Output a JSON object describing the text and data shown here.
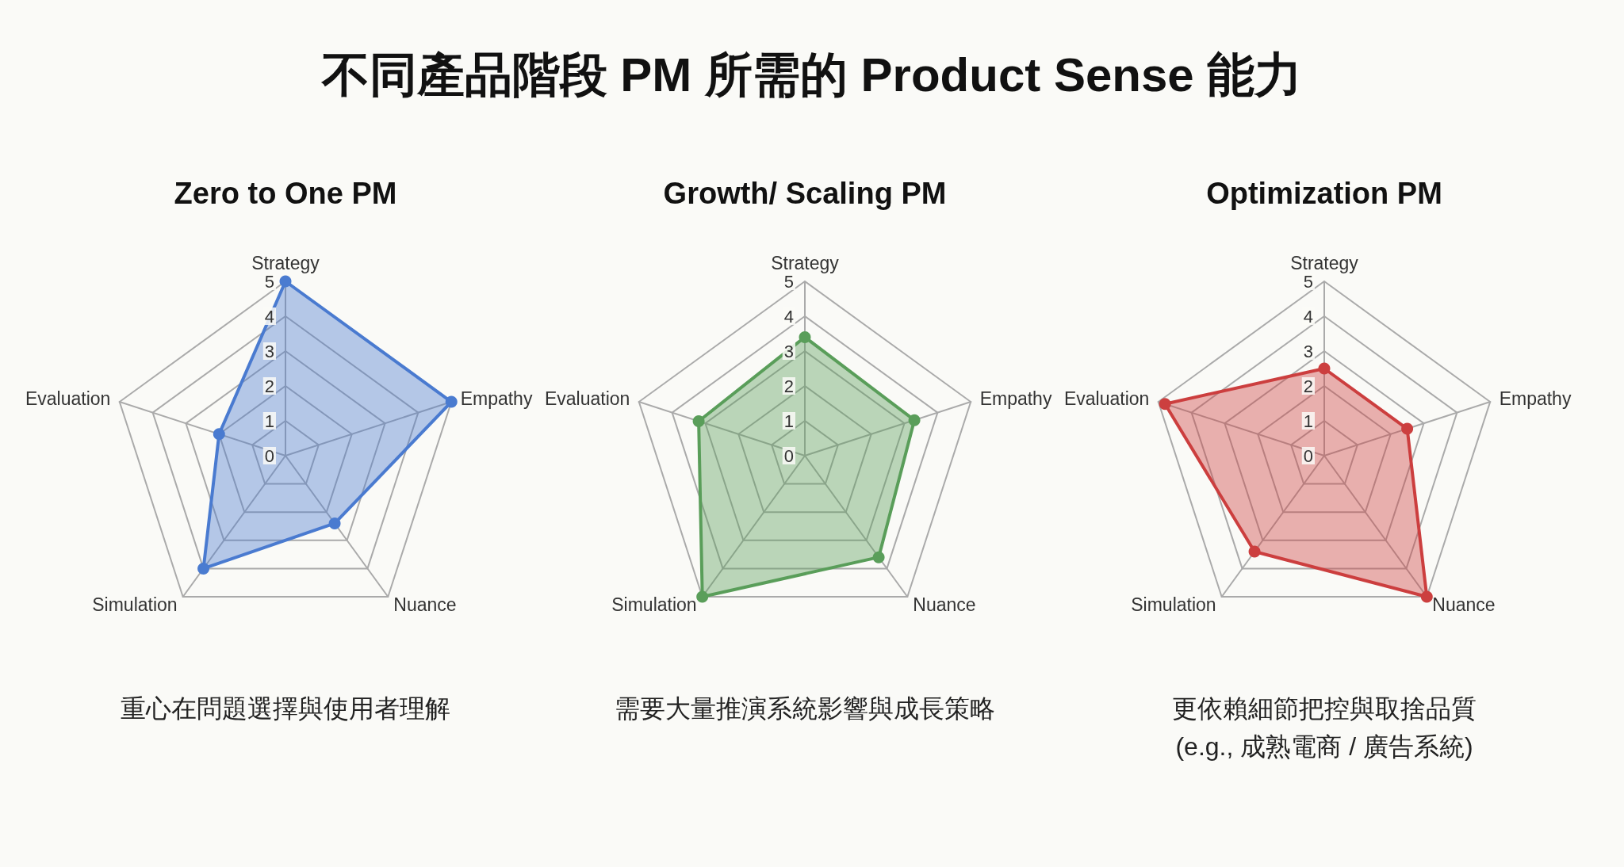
{
  "chart_data": [
    {
      "type": "other",
      "title": "不同產品階段 PM 所需的 Product Sense 能力"
    },
    {
      "type": "radar",
      "title": "Zero to One PM",
      "categories": [
        "Strategy",
        "Empathy",
        "Nuance",
        "Simulation",
        "Evaluation"
      ],
      "ylim": [
        0,
        5
      ],
      "yticks": [
        0,
        1,
        2,
        3,
        4,
        5
      ],
      "marker": "circle",
      "grid": true,
      "series": [
        {
          "color": "#4a7bd0",
          "values": [
            5,
            5,
            2.4,
            4,
            2
          ]
        }
      ],
      "annotations": [
        "重心在問題選擇與使用者理解"
      ]
    },
    {
      "type": "radar",
      "title": "Growth/ Scaling PM",
      "categories": [
        "Strategy",
        "Empathy",
        "Nuance",
        "Simulation",
        "Evaluation"
      ],
      "ylim": [
        0,
        5
      ],
      "yticks": [
        0,
        1,
        2,
        3,
        4,
        5
      ],
      "marker": "circle",
      "grid": true,
      "series": [
        {
          "color": "#5a9e5a",
          "values": [
            3.4,
            3.3,
            3.6,
            5,
            3.2
          ]
        }
      ],
      "annotations": [
        "需要大量推演系統影響與成長策略"
      ]
    },
    {
      "type": "radar",
      "title": "Optimization PM",
      "categories": [
        "Strategy",
        "Empathy",
        "Nuance",
        "Simulation",
        "Evaluation"
      ],
      "ylim": [
        0,
        5
      ],
      "yticks": [
        0,
        1,
        2,
        3,
        4,
        5
      ],
      "marker": "circle",
      "grid": true,
      "series": [
        {
          "color": "#cc3f3f",
          "values": [
            2.5,
            2.5,
            5,
            3.4,
            4.8
          ]
        }
      ],
      "annotations": [
        "更依賴細節把控與取捨品質",
        "(e.g., 成熟電商 / 廣告系統)"
      ]
    }
  ]
}
